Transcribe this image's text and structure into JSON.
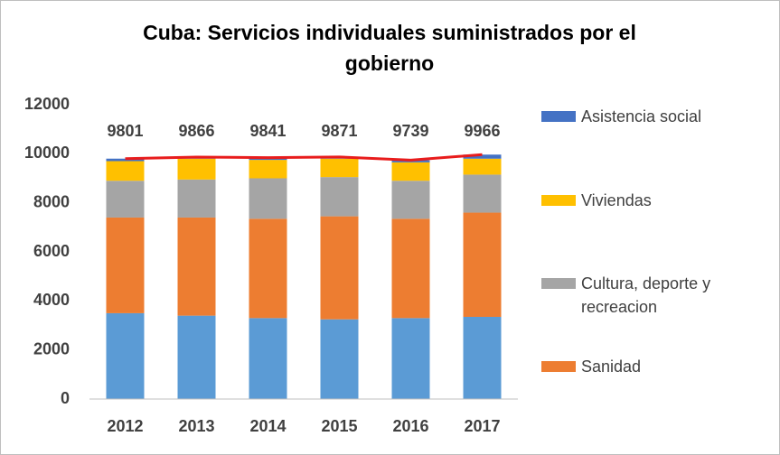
{
  "chart_data": {
    "type": "bar",
    "stacked": true,
    "title": "Cuba: Servicios individuales suministrados por el gobierno",
    "categories": [
      "2012",
      "2013",
      "2014",
      "2015",
      "2016",
      "2017"
    ],
    "series": [
      {
        "color": "#5b9bd5",
        "values": [
          3500,
          3400,
          3300,
          3250,
          3300,
          3350
        ]
      },
      {
        "name": "Sanidad",
        "color": "#ed7d31",
        "values": [
          3900,
          4000,
          4050,
          4200,
          4050,
          4250
        ]
      },
      {
        "name": "Cultura, deporte y recreacion",
        "color": "#a5a5a5",
        "values": [
          1500,
          1550,
          1650,
          1600,
          1550,
          1550
        ]
      },
      {
        "name": "Viviendas",
        "color": "#ffc000",
        "values": [
          800,
          850,
          750,
          750,
          750,
          650
        ]
      },
      {
        "name": "Asistencia social",
        "color": "#4472c4",
        "values": [
          101,
          66,
          91,
          71,
          89,
          166
        ]
      }
    ],
    "line": {
      "color": "#e81c1c",
      "values": [
        9801,
        9866,
        9841,
        9871,
        9739,
        9966
      ]
    },
    "ylim": [
      0,
      12000
    ],
    "yticks": [
      0,
      2000,
      4000,
      6000,
      8000,
      10000,
      12000
    ]
  }
}
